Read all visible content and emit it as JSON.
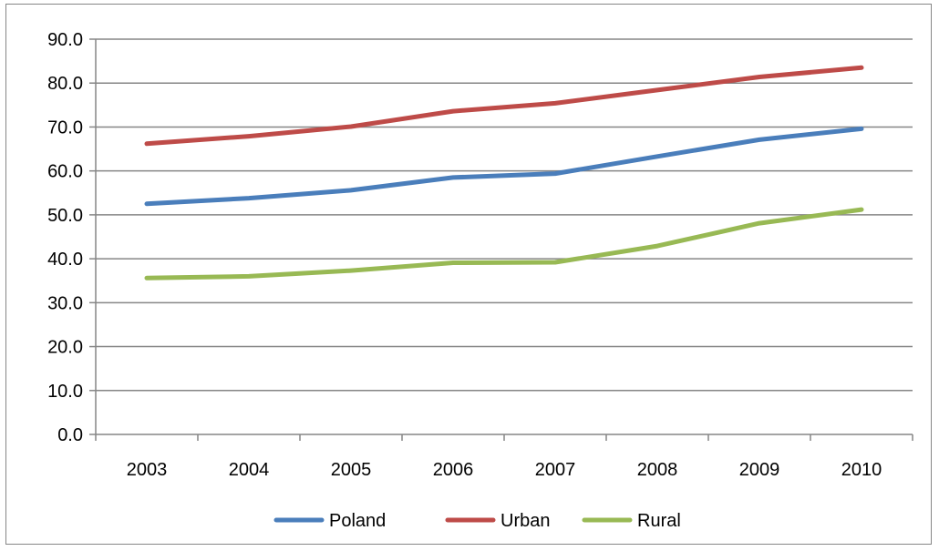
{
  "chart_data": {
    "type": "line",
    "title": "",
    "xlabel": "",
    "ylabel": "",
    "categories": [
      "2003",
      "2004",
      "2005",
      "2006",
      "2007",
      "2008",
      "2009",
      "2010"
    ],
    "ylim": [
      0,
      90
    ],
    "ytick_step": 10,
    "ytick_labels": [
      "0.0",
      "10.0",
      "20.0",
      "30.0",
      "40.0",
      "50.0",
      "60.0",
      "70.0",
      "80.0",
      "90.0"
    ],
    "grid": true,
    "legend_position": "bottom",
    "series": [
      {
        "name": "Poland",
        "color": "#4a7ebb",
        "values": [
          52.5,
          53.8,
          55.6,
          58.5,
          59.4,
          63.3,
          67.1,
          69.6
        ]
      },
      {
        "name": "Urban",
        "color": "#be4b48",
        "values": [
          66.2,
          67.9,
          70.1,
          73.6,
          75.4,
          78.4,
          81.4,
          83.5
        ]
      },
      {
        "name": "Rural",
        "color": "#98b954",
        "values": [
          35.6,
          36.0,
          37.3,
          39.1,
          39.2,
          42.9,
          48.1,
          51.2
        ]
      }
    ]
  }
}
